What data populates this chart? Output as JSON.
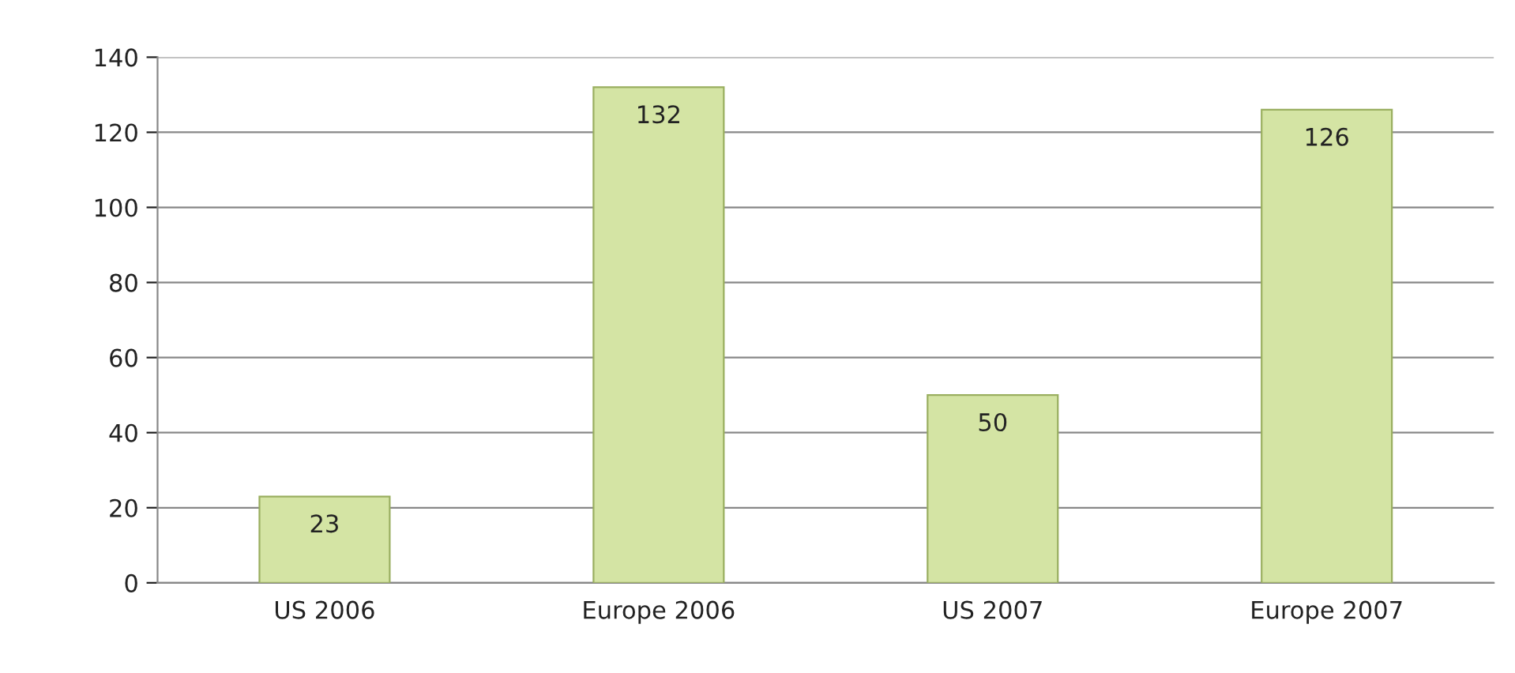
{
  "chart_data": {
    "type": "bar",
    "categories": [
      "US 2006",
      "Europe 2006",
      "US 2007",
      "Europe 2007"
    ],
    "values": [
      23,
      132,
      50,
      126
    ],
    "color": "#d4e4a4",
    "ylim": [
      0,
      140
    ],
    "yticks": [
      0,
      20,
      40,
      60,
      80,
      100,
      120,
      140
    ],
    "grid": "y",
    "data_labels": true
  }
}
